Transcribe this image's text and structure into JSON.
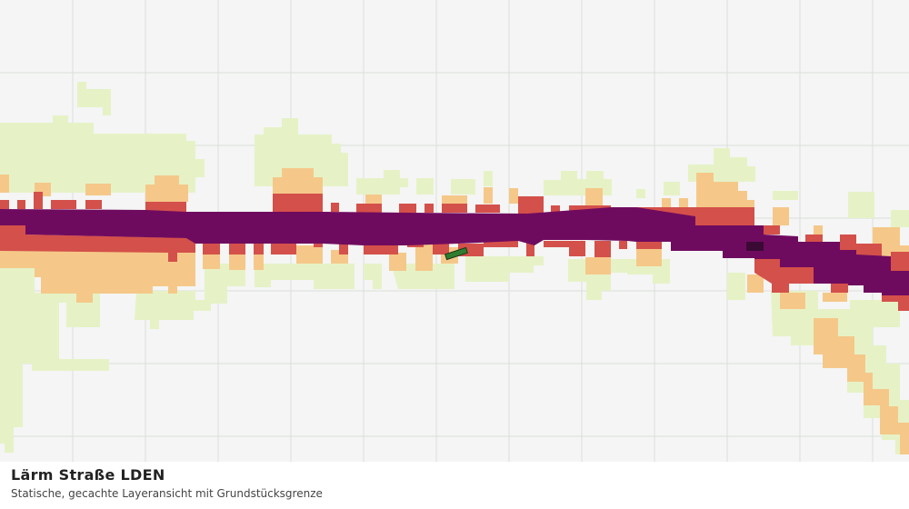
{
  "header": {
    "title": "Lärm Straße LDEN",
    "subtitle": "Statische, gecachte Layeransicht mit Grundstücksgrenze"
  }
}
